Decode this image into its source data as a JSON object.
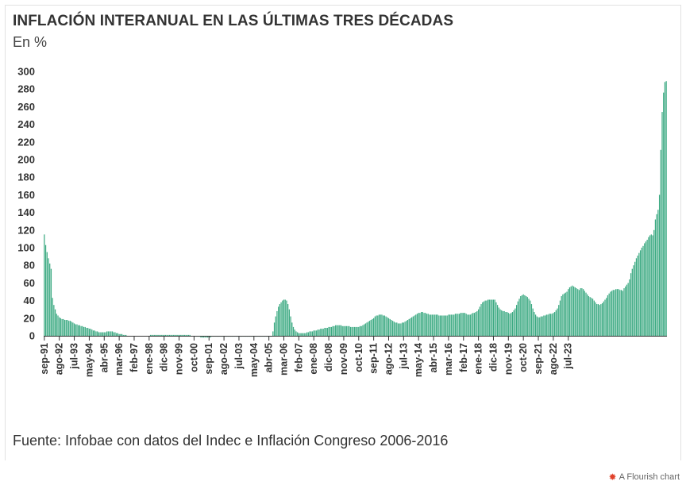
{
  "chart_data": {
    "type": "bar",
    "title": "INFLACIÓN INTERANUAL EN LAS ÚLTIMAS TRES DÉCADAS",
    "subtitle": "En %",
    "source": "Fuente: Infobae con datos del Indec e Inflación Congreso 2006-2016",
    "ylim": [
      0,
      300
    ],
    "y_ticks": [
      "0",
      "20",
      "40",
      "60",
      "80",
      "100",
      "120",
      "140",
      "160",
      "180",
      "200",
      "220",
      "240",
      "260",
      "280",
      "300"
    ],
    "x_ticks": [
      "sep-91",
      "ago-92",
      "jul-93",
      "may-94",
      "abr-95",
      "mar-96",
      "feb-97",
      "ene-98",
      "dic-98",
      "nov-99",
      "oct-00",
      "sep-01",
      "ago-02",
      "jul-03",
      "may-04",
      "abr-05",
      "mar-06",
      "feb-07",
      "ene-08",
      "dic-08",
      "nov-09",
      "oct-10",
      "sep-11",
      "ago-12",
      "jul-13",
      "may-14",
      "abr-15",
      "mar-16",
      "feb-17",
      "ene-18",
      "dic-18",
      "nov-19",
      "oct-20",
      "sep-21",
      "ago-22",
      "jul-23"
    ],
    "bar_color": "#3aa981",
    "series": [
      {
        "name": "",
        "values": [
          115,
          103,
          95,
          88,
          82,
          76,
          43,
          35,
          30,
          25,
          23,
          21,
          20,
          19,
          19,
          18,
          18,
          18,
          17,
          17,
          16,
          15,
          14,
          13,
          13,
          12,
          12,
          11,
          11,
          10,
          10,
          9,
          9,
          8,
          8,
          7,
          6,
          6,
          5,
          5,
          4,
          4,
          4,
          4,
          4,
          4,
          5,
          5,
          5,
          5,
          5,
          4,
          4,
          3,
          3,
          2,
          2,
          2,
          1,
          1,
          1,
          0,
          0,
          0,
          0,
          0,
          0,
          0,
          0,
          0,
          0,
          0,
          0,
          0,
          0,
          0,
          0,
          0,
          1,
          1,
          1,
          1,
          1,
          1,
          1,
          1,
          1,
          1,
          1,
          1,
          1,
          1,
          1,
          1,
          1,
          1,
          1,
          1,
          1,
          1,
          1,
          1,
          1,
          1,
          1,
          1,
          1,
          1,
          0,
          0,
          -1,
          -1,
          -1,
          -1,
          -1,
          -2,
          -2,
          -2,
          -2,
          -2,
          -2,
          -2,
          -2,
          -1,
          -1,
          -1,
          -1,
          -1,
          -1,
          -1,
          -1,
          -1,
          -1,
          -1,
          -1,
          -1,
          -1,
          -1,
          -1,
          -1,
          -1,
          -1,
          -1,
          -1,
          -1,
          -1,
          -1,
          -1,
          -1,
          -1,
          -1,
          -1,
          -1,
          -1,
          -1,
          -1,
          -1,
          -1,
          -1,
          -1,
          -1,
          -1,
          -1,
          -1,
          -1,
          -1,
          -1,
          -1,
          5,
          15,
          22,
          28,
          33,
          36,
          38,
          40,
          41,
          41,
          40,
          36,
          30,
          22,
          15,
          10,
          7,
          5,
          4,
          3,
          3,
          3,
          3,
          3,
          3,
          4,
          4,
          5,
          5,
          5,
          6,
          6,
          6,
          7,
          7,
          8,
          8,
          8,
          9,
          9,
          9,
          10,
          10,
          10,
          11,
          11,
          12,
          12,
          12,
          12,
          12,
          11,
          11,
          11,
          11,
          11,
          11,
          10,
          10,
          10,
          10,
          10,
          10,
          10,
          11,
          11,
          12,
          13,
          14,
          15,
          16,
          17,
          18,
          19,
          20,
          22,
          23,
          23,
          24,
          24,
          24,
          23,
          23,
          22,
          21,
          20,
          19,
          18,
          17,
          16,
          15,
          15,
          14,
          14,
          14,
          15,
          15,
          16,
          17,
          18,
          19,
          20,
          21,
          22,
          23,
          24,
          25,
          26,
          26,
          27,
          27,
          26,
          26,
          25,
          25,
          24,
          24,
          24,
          24,
          24,
          24,
          24,
          23,
          23,
          23,
          23,
          23,
          23,
          23,
          24,
          24,
          24,
          24,
          24,
          25,
          25,
          25,
          25,
          26,
          26,
          26,
          26,
          25,
          24,
          24,
          24,
          25,
          26,
          26,
          27,
          28,
          30,
          33,
          36,
          38,
          39,
          40,
          40,
          41,
          41,
          41,
          41,
          41,
          41,
          38,
          35,
          32,
          30,
          29,
          28,
          28,
          27,
          27,
          26,
          25,
          26,
          27,
          29,
          31,
          35,
          39,
          42,
          45,
          46,
          47,
          46,
          45,
          44,
          42,
          40,
          36,
          31,
          27,
          24,
          22,
          21,
          21,
          22,
          22,
          23,
          23,
          24,
          24,
          25,
          25,
          25,
          26,
          27,
          29,
          31,
          35,
          40,
          45,
          47,
          48,
          49,
          50,
          53,
          55,
          56,
          57,
          56,
          55,
          54,
          53,
          52,
          54,
          54,
          53,
          51,
          49,
          47,
          45,
          44,
          43,
          42,
          40,
          38,
          36,
          36,
          35,
          36,
          37,
          39,
          41,
          43,
          46,
          48,
          50,
          51,
          52,
          52,
          53,
          53,
          53,
          52,
          52,
          51,
          54,
          56,
          58,
          60,
          64,
          71,
          76,
          80,
          84,
          88,
          91,
          94,
          97,
          100,
          102,
          105,
          107,
          109,
          112,
          114,
          115,
          114,
          120,
          132,
          138,
          143,
          160,
          211,
          254,
          276,
          288,
          289
        ]
      }
    ]
  },
  "footer": {
    "brand": "A Flourish chart",
    "brand_icon": "flourish-logo-icon"
  }
}
